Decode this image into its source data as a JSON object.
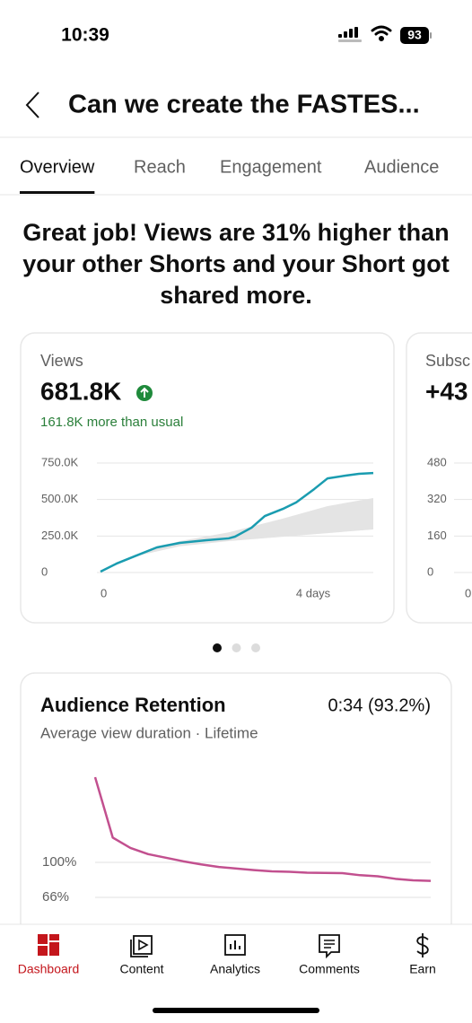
{
  "status_bar": {
    "time": "10:39",
    "battery": "93"
  },
  "header": {
    "title": "Can we create the FASTES..."
  },
  "tabs": {
    "items": [
      "Overview",
      "Reach",
      "Engagement",
      "Audience"
    ],
    "active": 0
  },
  "headline": "Great job! Views are 31% higher than your other Shorts and your Short got shared more.",
  "views_card": {
    "label": "Views",
    "value": "681.8K",
    "delta": "161.8K more than usual",
    "chart": {
      "type": "line",
      "x": [
        0,
        0.3,
        0.64,
        1.06,
        1.49,
        1.99,
        2.41,
        2.53,
        2.84,
        3.09,
        3.43,
        3.68,
        4.02,
        4.27,
        4.61,
        4.86,
        5.13
      ],
      "series": [
        {
          "color": "#1a9cb0",
          "values": [
            6000,
            61000,
            111000,
            172000,
            203000,
            221000,
            234000,
            246000,
            307000,
            387000,
            436000,
            480000,
            572000,
            645000,
            664000,
            676000,
            681800
          ]
        }
      ],
      "band": {
        "color": "#e4e4e4",
        "x": [
          0.64,
          1.49,
          2.41,
          3.43,
          4.27,
          5.13
        ],
        "lower": [
          110000,
          180000,
          215000,
          245000,
          270000,
          295000
        ],
        "upper": [
          120000,
          215000,
          275000,
          370000,
          455000,
          510000
        ]
      },
      "xlim": [
        0,
        5.13
      ],
      "xticks": [
        0,
        {
          "value": 4,
          "label": "4 days"
        }
      ],
      "ylim": [
        0,
        750000
      ],
      "yticks": [
        0,
        {
          "value": 250000,
          "label": "250.0K"
        },
        {
          "value": 500000,
          "label": "500.0K"
        },
        {
          "value": 750000,
          "label": "750.0K"
        }
      ]
    }
  },
  "subs_card": {
    "label": "Subsc",
    "value": "+43",
    "chart": {
      "type": "line",
      "ylim": [
        0,
        480
      ],
      "yticks": [
        0,
        160,
        320,
        480
      ],
      "xticks": [
        0
      ]
    }
  },
  "pagination": {
    "count": 3,
    "active": 0
  },
  "retention_card": {
    "title": "Audience Retention",
    "value": "0:34 (93.2%)",
    "subtitle": "Average view duration · Lifetime",
    "chart": {
      "type": "line",
      "color": "#c2508f",
      "values": [
        182.8,
        124,
        114,
        108,
        104.5,
        101,
        98,
        95.5,
        94,
        92.5,
        91.3,
        90.8,
        90,
        89.7,
        89.5,
        87.5,
        86.5,
        84,
        82.5,
        82
      ],
      "ylim": [
        50,
        190
      ],
      "yticks": [
        {
          "value": 100,
          "label": "100%"
        },
        {
          "value": 66,
          "label": "66%"
        }
      ]
    }
  },
  "nav": {
    "items": [
      "Dashboard",
      "Content",
      "Analytics",
      "Comments",
      "Earn"
    ],
    "active": 0,
    "active_color": "#c4161c"
  }
}
